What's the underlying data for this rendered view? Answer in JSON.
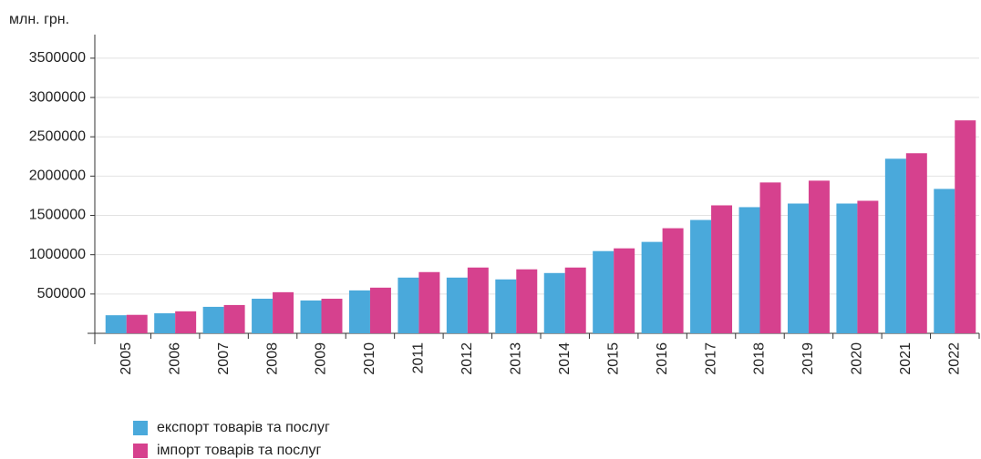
{
  "chart_data": {
    "type": "bar",
    "y_label": "млн. грн.",
    "categories": [
      "2005",
      "2006",
      "2007",
      "2008",
      "2009",
      "2010",
      "2011",
      "2012",
      "2013",
      "2014",
      "2015",
      "2016",
      "2017",
      "2018",
      "2019",
      "2020",
      "2021",
      "2022"
    ],
    "series": [
      {
        "name": "експорт товарів та послуг",
        "color": "#4aa9db",
        "values": [
          230000,
          255000,
          337000,
          440000,
          418000,
          546000,
          709000,
          709000,
          686000,
          767000,
          1046000,
          1163000,
          1442000,
          1605000,
          1651000,
          1651000,
          2221000,
          1837000
        ]
      },
      {
        "name": "імпорт товарів та послуг",
        "color": "#d6418e",
        "values": [
          235000,
          280000,
          360000,
          523000,
          440000,
          581000,
          779000,
          837000,
          814000,
          837000,
          1081000,
          1337000,
          1628000,
          1919000,
          1942000,
          1686000,
          2291000,
          2709000
        ]
      }
    ],
    "ylim": [
      0,
      3800000
    ],
    "yticks": [
      500000,
      1000000,
      1500000,
      2000000,
      2500000,
      3000000,
      3500000
    ],
    "grid": true
  }
}
